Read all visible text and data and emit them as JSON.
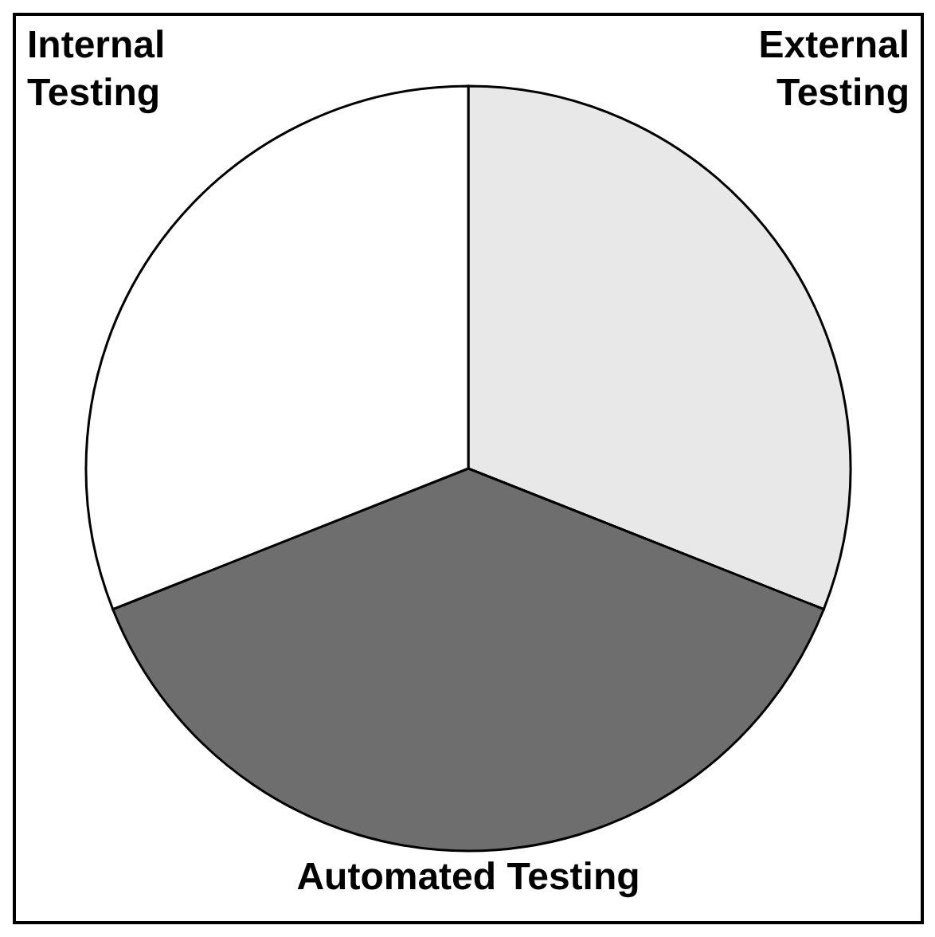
{
  "chart_data": {
    "type": "pie",
    "categories": [
      "External Testing",
      "Automated Testing",
      "Internal Testing"
    ],
    "values": [
      31,
      38,
      31
    ],
    "colors": [
      "#e8e8e8",
      "#6e6e6e",
      "#ffffff"
    ]
  }
}
